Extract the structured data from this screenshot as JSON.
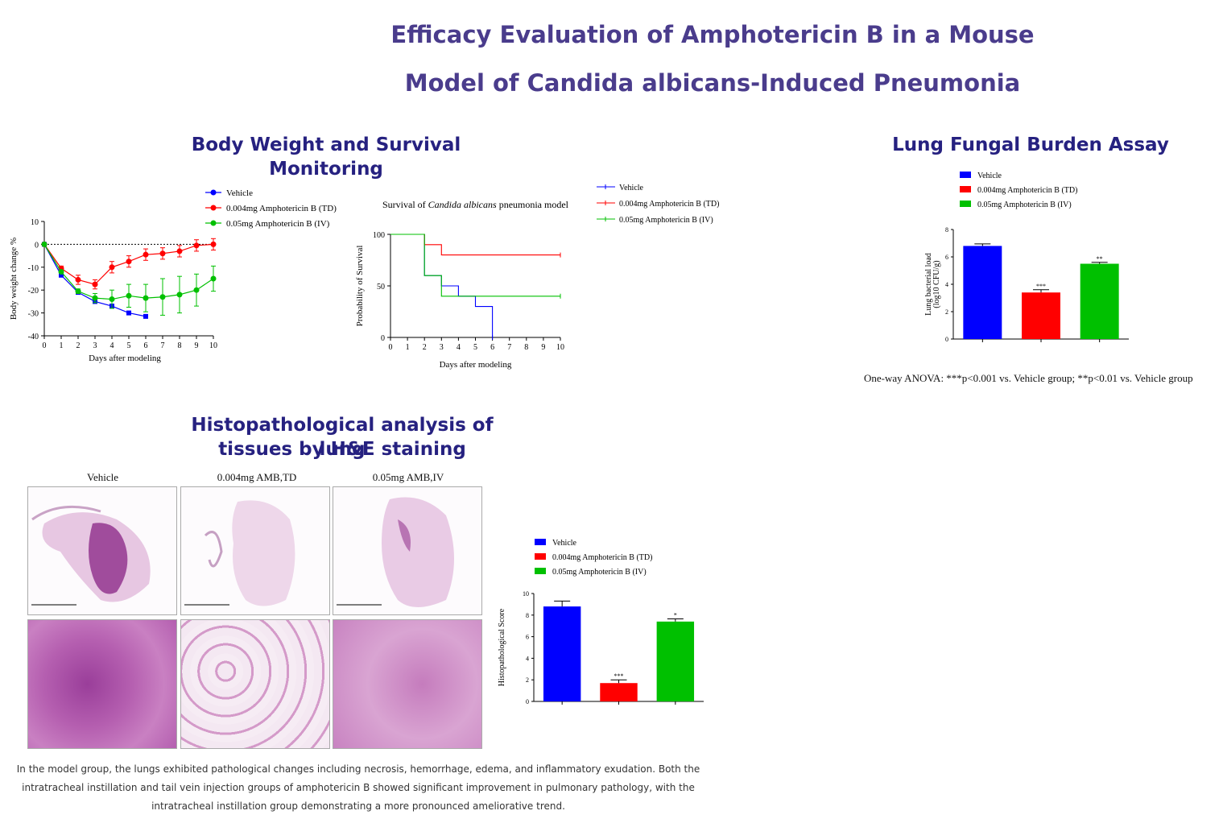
{
  "title": {
    "line1": "Efficacy Evaluation of Amphotericin B in a Mouse",
    "line2": "Model of Candida albicans-Induced Pneumonia"
  },
  "sections": {
    "body_weight": "Body Weight and Survival Monitoring",
    "fungal": "Lung Fungal Burden Assay",
    "histo_line1": "Histopathological analysis of lung",
    "histo_line2": "tissues by H&E staining"
  },
  "colors": {
    "vehicle": "#0000ff",
    "td": "#ff0000",
    "iv": "#00c000",
    "title": "#4a3c8c",
    "section": "#262180"
  },
  "histology": {
    "column_headers": [
      "Vehicle",
      "0.004mg AMB,TD",
      "0.05mg AMB,IV"
    ]
  },
  "notes": {
    "anova": "One-way ANOVA: ***p<0.001 vs. Vehicle group; **p<0.01 vs. Vehicle group",
    "histo_line1": "In the model group, the lungs exhibited pathological changes including necrosis, hemorrhage, edema, and inflammatory exudation. Both the",
    "histo_line2": "intratracheal instillation and tail vein injection groups of amphotericin B showed significant improvement in pulmonary pathology, with the",
    "histo_line3": "intratracheal instillation group demonstrating a more pronounced ameliorative trend."
  },
  "chart_data": [
    {
      "id": "weight",
      "type": "line",
      "xlabel": "Days after  modeling",
      "ylabel": "Body weight change %",
      "xlim": [
        0,
        10
      ],
      "ylim": [
        -40,
        10
      ],
      "xticks": [
        0,
        1,
        2,
        3,
        4,
        5,
        6,
        7,
        8,
        9,
        10
      ],
      "yticks": [
        -40,
        -30,
        -20,
        -10,
        0,
        10
      ],
      "reference_line": 0,
      "legend_position": "top",
      "series": [
        {
          "name": "Vehicle",
          "color": "#0000ff",
          "marker": "square",
          "x": [
            0,
            1,
            2,
            3,
            4,
            5,
            6
          ],
          "y": [
            0,
            -13.5,
            -21,
            -25,
            -27,
            -30,
            -31.5
          ],
          "err": [
            0,
            0.5,
            0.8,
            0.8,
            0.8,
            0.5,
            0.3
          ]
        },
        {
          "name": "0.004mg Amphotericin B (TD)",
          "color": "#ff0000",
          "marker": "circle",
          "x": [
            0,
            1,
            2,
            3,
            4,
            5,
            6,
            7,
            8,
            9,
            10
          ],
          "y": [
            0,
            -10.5,
            -15.5,
            -17.5,
            -10,
            -7.5,
            -4.5,
            -4,
            -3,
            -0.5,
            0
          ],
          "err": [
            0,
            1,
            2,
            2,
            2.5,
            2.5,
            2.5,
            2.5,
            2.5,
            2.5,
            2.5
          ]
        },
        {
          "name": "0.05mg Amphotericin B (IV)",
          "color": "#00c000",
          "marker": "circle",
          "x": [
            0,
            1,
            2,
            3,
            4,
            5,
            6,
            7,
            8,
            9,
            10
          ],
          "y": [
            0,
            -12,
            -20.5,
            -23.5,
            -24,
            -22.5,
            -23.5,
            -23,
            -22,
            -20,
            -15
          ],
          "err": [
            0,
            0.5,
            1,
            2,
            4,
            5,
            6,
            8,
            8,
            7,
            5.5
          ]
        }
      ]
    },
    {
      "id": "survival",
      "type": "line",
      "title_plain1": "Survival of ",
      "title_italic": "Candida albicans",
      "title_plain2": " pneumonia model",
      "xlabel": "Days after  modeling",
      "ylabel": "Probability of Survival",
      "xlim": [
        0,
        10
      ],
      "ylim": [
        0,
        100
      ],
      "xticks": [
        0,
        1,
        2,
        3,
        4,
        5,
        6,
        7,
        8,
        9,
        10
      ],
      "yticks": [
        0,
        50,
        100
      ],
      "legend_position": "right",
      "series": [
        {
          "name": "Vehicle",
          "color": "#0000ff",
          "x": [
            0,
            2,
            2,
            3,
            3,
            4,
            4,
            5,
            5,
            6,
            6
          ],
          "y": [
            100,
            100,
            60,
            60,
            50,
            50,
            40,
            40,
            30,
            30,
            0
          ]
        },
        {
          "name": "0.004mg Amphotericin B (TD)",
          "color": "#ff0000",
          "x": [
            0,
            2,
            2,
            3,
            3,
            10
          ],
          "y": [
            100,
            100,
            90,
            90,
            80,
            80
          ]
        },
        {
          "name": "0.05mg Amphotericin B (IV)",
          "color": "#00c000",
          "x": [
            0,
            2,
            2,
            3,
            3,
            10
          ],
          "y": [
            100,
            100,
            60,
            60,
            40,
            40
          ]
        }
      ]
    },
    {
      "id": "fungal",
      "type": "bar",
      "ylabel_line1": "Lung bacterial load",
      "ylabel_line2": "(log10 CFU/g)",
      "ylim": [
        0,
        8
      ],
      "yticks": [
        0,
        2,
        4,
        6,
        8
      ],
      "legend_position": "top-left",
      "categories": [
        "Vehicle",
        "0.004mg Amphotericin B (TD)",
        "0.05mg Amphotericin B (IV)"
      ],
      "values": [
        6.8,
        3.4,
        5.5
      ],
      "errors": [
        0.15,
        0.2,
        0.1
      ],
      "colors": [
        "#0000ff",
        "#ff0000",
        "#00c000"
      ],
      "annotations": [
        "",
        "***",
        "**"
      ]
    },
    {
      "id": "histo",
      "type": "bar",
      "ylabel": "Histopathological Score",
      "ylim": [
        0,
        10
      ],
      "yticks": [
        0,
        2,
        4,
        6,
        8,
        10
      ],
      "legend_position": "top-left",
      "categories": [
        "Vehicle",
        "0.004mg Amphotericin B (TD)",
        "0.05mg Amphotericin B (IV)"
      ],
      "values": [
        8.8,
        1.7,
        7.4
      ],
      "errors": [
        0.5,
        0.3,
        0.25
      ],
      "colors": [
        "#0000ff",
        "#ff0000",
        "#00c000"
      ],
      "annotations": [
        "",
        "***",
        "*"
      ]
    }
  ]
}
